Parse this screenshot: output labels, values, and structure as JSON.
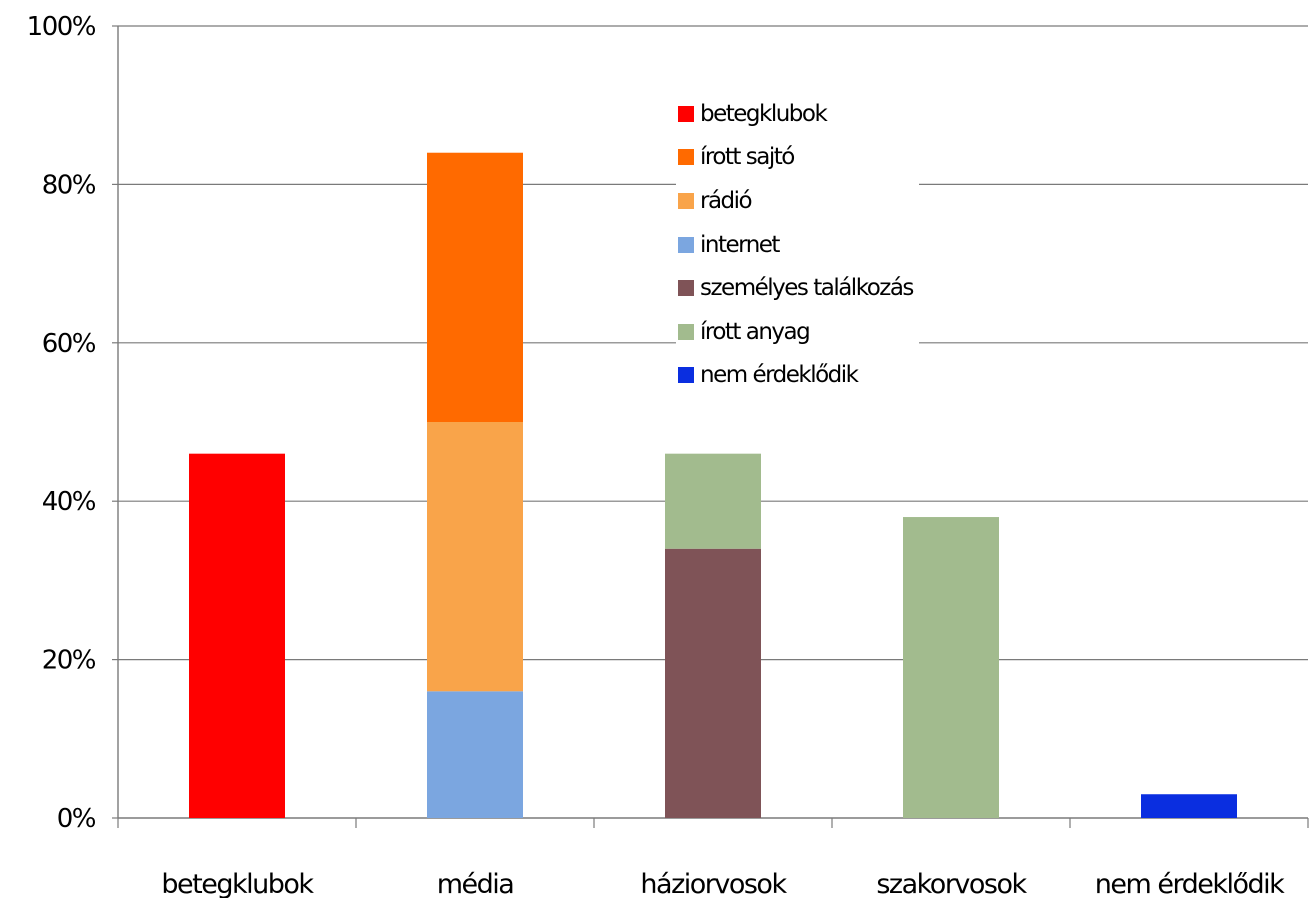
{
  "chart_data": {
    "type": "bar",
    "stacked": true,
    "categories": [
      "betegklubok",
      "média",
      "háziorvosok",
      "szakorvosok",
      "nem érdeklődik"
    ],
    "y_ticks": [
      "0%",
      "20%",
      "40%",
      "60%",
      "80%",
      "100%"
    ],
    "ylim": [
      0,
      100
    ],
    "grid": true,
    "legend_position": "top-center",
    "series": [
      {
        "name": "betegklubok",
        "color": "#ff0000",
        "values": [
          46,
          0,
          0,
          0,
          0
        ]
      },
      {
        "name": "internet",
        "color": "#7ba6e0",
        "values": [
          0,
          16,
          0,
          0,
          0
        ]
      },
      {
        "name": "rádió",
        "color": "#f9a44a",
        "values": [
          0,
          34,
          0,
          0,
          0
        ]
      },
      {
        "name": "írott sajtó",
        "color": "#ff6a00",
        "values": [
          0,
          34,
          0,
          0,
          0
        ]
      },
      {
        "name": "személyes találkozás",
        "color": "#7f5357",
        "values": [
          0,
          0,
          34,
          0,
          0
        ]
      },
      {
        "name": "írott anyag",
        "color": "#a2bb8e",
        "values": [
          0,
          0,
          12,
          38,
          0
        ]
      },
      {
        "name": "nem érdeklődik",
        "color": "#0a2ee0",
        "values": [
          0,
          0,
          0,
          0,
          3
        ]
      }
    ],
    "legend_order": [
      "betegklubok",
      "írott sajtó",
      "rádió",
      "internet",
      "személyes találkozás",
      "írott anyag",
      "nem érdeklődik"
    ]
  }
}
